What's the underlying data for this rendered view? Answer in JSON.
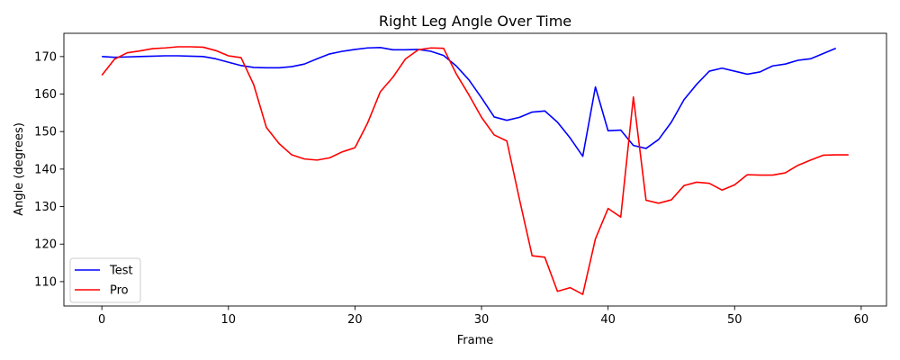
{
  "chart_data": {
    "type": "line",
    "title": "Right Leg Angle Over Time",
    "xlabel": "Frame",
    "ylabel": "Angle (degrees)",
    "xlim": [
      -3,
      62
    ],
    "ylim": [
      103.5,
      176.2
    ],
    "xticks": [
      0,
      10,
      20,
      30,
      40,
      50,
      60
    ],
    "yticks": [
      110,
      120,
      130,
      140,
      150,
      160,
      170
    ],
    "grid": false,
    "legend_position": "lower-left",
    "series": [
      {
        "name": "Test",
        "color": "#0000ff",
        "x": [
          0,
          1,
          2,
          3,
          4,
          5,
          6,
          7,
          8,
          9,
          10,
          11,
          12,
          13,
          14,
          15,
          16,
          17,
          18,
          19,
          20,
          21,
          22,
          23,
          24,
          25,
          26,
          27,
          28,
          29,
          30,
          31,
          32,
          33,
          34,
          35,
          36,
          37,
          38,
          39,
          40,
          41,
          42,
          43,
          44,
          45,
          46,
          47,
          48,
          49,
          50,
          51,
          52,
          53,
          54,
          55,
          56,
          57,
          58
        ],
        "values": [
          170.0,
          169.8,
          169.9,
          170.0,
          170.1,
          170.2,
          170.2,
          170.1,
          170.0,
          169.4,
          168.5,
          167.6,
          167.1,
          167.0,
          167.0,
          167.3,
          168.0,
          169.4,
          170.7,
          171.4,
          171.9,
          172.3,
          172.4,
          171.8,
          171.8,
          171.9,
          171.4,
          170.3,
          167.5,
          163.8,
          159.0,
          153.9,
          153.0,
          153.8,
          155.2,
          155.5,
          152.5,
          148.3,
          143.4,
          161.9,
          150.2,
          150.4,
          146.3,
          145.5,
          147.9,
          152.5,
          158.5,
          162.6,
          166.1,
          166.9,
          166.1,
          165.3,
          165.9,
          167.5,
          168.0,
          169.0,
          169.4,
          170.8,
          172.2
        ]
      },
      {
        "name": "Pro",
        "color": "#ff0000",
        "x": [
          0,
          1,
          2,
          3,
          4,
          5,
          6,
          7,
          8,
          9,
          10,
          11,
          12,
          13,
          14,
          15,
          16,
          17,
          18,
          19,
          20,
          21,
          22,
          23,
          24,
          25,
          26,
          27,
          28,
          29,
          30,
          31,
          32,
          33,
          34,
          35,
          36,
          37,
          38,
          39,
          40,
          41,
          42,
          43,
          44,
          45,
          46,
          47,
          48,
          49,
          50,
          51,
          52,
          53,
          54,
          55,
          56,
          57,
          58,
          59
        ],
        "values": [
          165.0,
          169.3,
          171.0,
          171.5,
          172.1,
          172.3,
          172.6,
          172.6,
          172.5,
          171.6,
          170.2,
          169.7,
          162.5,
          151.1,
          146.8,
          143.8,
          142.7,
          142.4,
          143.0,
          144.6,
          145.7,
          152.3,
          160.6,
          164.5,
          169.4,
          171.8,
          172.3,
          172.2,
          165.4,
          159.8,
          153.8,
          149.1,
          147.5,
          131.9,
          116.9,
          116.5,
          107.4,
          108.4,
          106.6,
          121.4,
          129.5,
          127.2,
          159.2,
          131.7,
          130.9,
          131.8,
          135.6,
          136.5,
          136.2,
          134.4,
          135.8,
          138.5,
          138.4,
          138.4,
          139.0,
          141.0,
          142.4,
          143.7,
          143.8,
          143.8
        ]
      }
    ]
  }
}
